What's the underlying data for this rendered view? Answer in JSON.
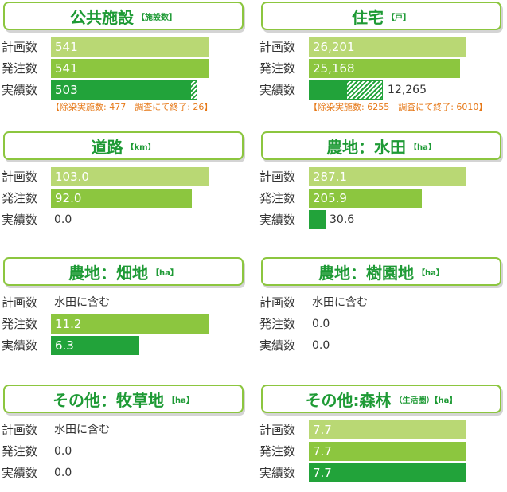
{
  "row_labels": {
    "plan": "計画数",
    "order": "発注数",
    "result": "実績数"
  },
  "chart_data": [
    {
      "type": "bar",
      "title": "公共施設",
      "unit": "【施設数】",
      "rows": [
        {
          "key": "plan",
          "value": 541,
          "text": "541"
        },
        {
          "key": "order",
          "value": 541,
          "text": "541"
        },
        {
          "key": "result",
          "value": 503,
          "text": "503",
          "hatched": 26,
          "hatch_base": 477
        }
      ],
      "max": 541,
      "note": "【除染実施数: 477　調査にて終了: 26】"
    },
    {
      "type": "bar",
      "title": "住宅",
      "unit": "【戸】",
      "rows": [
        {
          "key": "plan",
          "value": 26201,
          "text": "26,201"
        },
        {
          "key": "order",
          "value": 25168,
          "text": "25,168"
        },
        {
          "key": "result",
          "value": 12265,
          "text": "12,265",
          "hatched": 6010,
          "hatch_base": 6255
        }
      ],
      "max": 26201,
      "note": "【除染実施数: 6255　調査にて終了: 6010】"
    },
    {
      "type": "bar",
      "title": "道路",
      "unit": "【km】",
      "rows": [
        {
          "key": "plan",
          "value": 103.0,
          "text": "103.0"
        },
        {
          "key": "order",
          "value": 92.0,
          "text": "92.0"
        },
        {
          "key": "result",
          "value": 0.0,
          "text": "0.0"
        }
      ],
      "max": 103.0
    },
    {
      "type": "bar",
      "title": "農地：水田",
      "unit": "【ha】",
      "rows": [
        {
          "key": "plan",
          "value": 287.1,
          "text": "287.1"
        },
        {
          "key": "order",
          "value": 205.9,
          "text": "205.9"
        },
        {
          "key": "result",
          "value": 30.6,
          "text": "30.6"
        }
      ],
      "max": 287.1
    },
    {
      "type": "bar",
      "title": "農地：畑地",
      "unit": "【ha】",
      "rows": [
        {
          "key": "plan",
          "value": null,
          "text": "水田に含む"
        },
        {
          "key": "order",
          "value": 11.2,
          "text": "11.2"
        },
        {
          "key": "result",
          "value": 6.3,
          "text": "6.3"
        }
      ],
      "max": 11.2
    },
    {
      "type": "bar",
      "title": "農地：樹園地",
      "unit": "【ha】",
      "rows": [
        {
          "key": "plan",
          "value": null,
          "text": "水田に含む"
        },
        {
          "key": "order",
          "value": 0.0,
          "text": "0.0"
        },
        {
          "key": "result",
          "value": 0.0,
          "text": "0.0"
        }
      ],
      "max": 1
    },
    {
      "type": "bar",
      "title": "その他：牧草地",
      "unit": "【ha】",
      "rows": [
        {
          "key": "plan",
          "value": null,
          "text": "水田に含む"
        },
        {
          "key": "order",
          "value": 0.0,
          "text": "0.0"
        },
        {
          "key": "result",
          "value": 0.0,
          "text": "0.0"
        }
      ],
      "max": 1
    },
    {
      "type": "bar",
      "title": "その他:森林",
      "unit": "（生活圏）【ha】",
      "rows": [
        {
          "key": "plan",
          "value": 7.7,
          "text": "7.7"
        },
        {
          "key": "order",
          "value": 7.7,
          "text": "7.7"
        },
        {
          "key": "result",
          "value": 7.7,
          "text": "7.7"
        }
      ],
      "max": 7.7
    }
  ]
}
